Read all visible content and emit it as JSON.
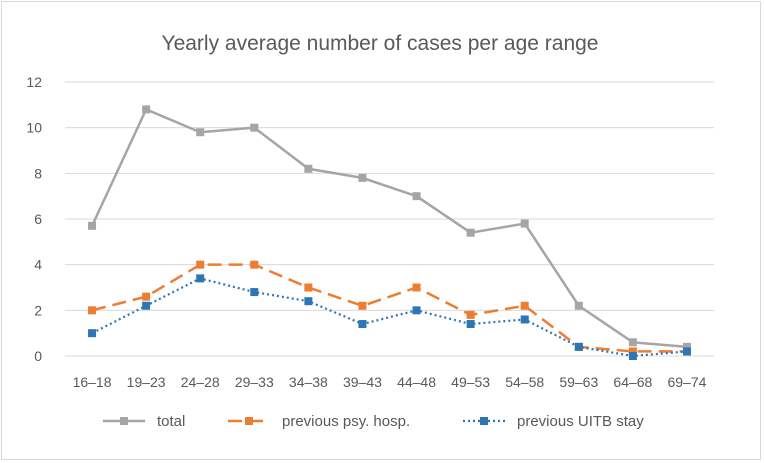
{
  "chart_data": {
    "type": "line",
    "title": "Yearly average number of cases per age range",
    "xlabel": "",
    "ylabel": "",
    "ylim": [
      0,
      12
    ],
    "yticks": [
      0,
      2,
      4,
      6,
      8,
      10,
      12
    ],
    "grid": true,
    "legend_position": "bottom",
    "categories": [
      "16–18",
      "19–23",
      "24–28",
      "29–33",
      "34–38",
      "39–43",
      "44–48",
      "49–53",
      "54–58",
      "59–63",
      "64–68",
      "69–74"
    ],
    "series": [
      {
        "name": "total",
        "color": "#a5a5a5",
        "style": "solid",
        "values": [
          5.7,
          10.8,
          9.8,
          10.0,
          8.2,
          7.8,
          7.0,
          5.4,
          5.8,
          2.2,
          0.6,
          0.4
        ]
      },
      {
        "name": "previous psy. hosp.",
        "color": "#ed7d31",
        "style": "dashed",
        "values": [
          2.0,
          2.6,
          4.0,
          4.0,
          3.0,
          2.2,
          3.0,
          1.8,
          2.2,
          0.4,
          0.2,
          0.2
        ]
      },
      {
        "name": "previous UITB stay",
        "color": "#2e75b6",
        "style": "dotted",
        "values": [
          1.0,
          2.2,
          3.4,
          2.8,
          2.4,
          1.4,
          2.0,
          1.4,
          1.6,
          0.4,
          0.0,
          0.2
        ]
      }
    ]
  }
}
